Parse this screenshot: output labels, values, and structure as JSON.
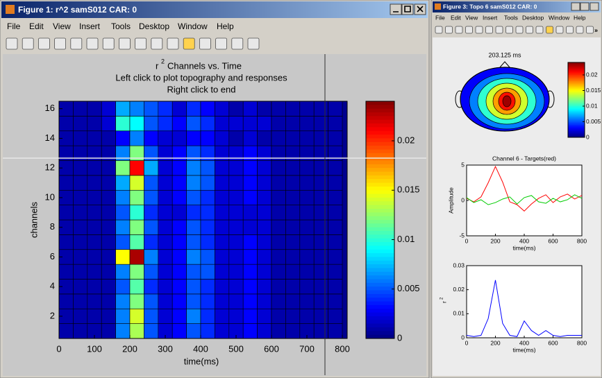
{
  "windows": [
    {
      "title": "Figure 1: r^2 samS012 CAR: 0",
      "menu": [
        "File",
        "Edit",
        "View",
        "Insert",
        "Tools",
        "Desktop",
        "Window",
        "Help"
      ],
      "heatmap": {
        "title_base": "r",
        "title_sup": "2",
        "title_rest": "Channels vs. Time",
        "subtitle": [
          "Left click to plot topography and responses",
          "Right click to end"
        ],
        "xlabel": "time(ms)",
        "ylabel": "channels",
        "xlim": [
          0,
          800
        ],
        "xticks": [
          0,
          100,
          200,
          300,
          400,
          500,
          600,
          700,
          800
        ],
        "ylim": [
          0.5,
          16.5
        ],
        "yticks": [
          2,
          4,
          6,
          8,
          10,
          12,
          14,
          16
        ],
        "bins": [
          0,
          40,
          80,
          120,
          160,
          200,
          240,
          280,
          320,
          360,
          400,
          440,
          480,
          520,
          560,
          600,
          640,
          680,
          720,
          760,
          800
        ],
        "values": [
          [
            0.001,
            0.001,
            0.001,
            0.001,
            0.006,
            0.013,
            0.005,
            0.002,
            0.003,
            0.005,
            0.004,
            0.002,
            0.002,
            0.003,
            0.002,
            0.001,
            0.001,
            0.001,
            0.001,
            0.001
          ],
          [
            0.001,
            0.001,
            0.001,
            0.001,
            0.006,
            0.014,
            0.005,
            0.002,
            0.003,
            0.006,
            0.004,
            0.002,
            0.002,
            0.003,
            0.002,
            0.001,
            0.001,
            0.001,
            0.001,
            0.001
          ],
          [
            0.001,
            0.001,
            0.001,
            0.001,
            0.006,
            0.012,
            0.005,
            0.002,
            0.003,
            0.005,
            0.004,
            0.002,
            0.002,
            0.003,
            0.002,
            0.001,
            0.001,
            0.001,
            0.001,
            0.001
          ],
          [
            0.001,
            0.001,
            0.001,
            0.001,
            0.005,
            0.011,
            0.004,
            0.002,
            0.003,
            0.005,
            0.004,
            0.002,
            0.002,
            0.003,
            0.002,
            0.001,
            0.001,
            0.001,
            0.001,
            0.001
          ],
          [
            0.001,
            0.001,
            0.001,
            0.001,
            0.006,
            0.012,
            0.005,
            0.002,
            0.003,
            0.005,
            0.005,
            0.002,
            0.002,
            0.003,
            0.002,
            0.001,
            0.001,
            0.001,
            0.001,
            0.001
          ],
          [
            0.001,
            0.001,
            0.001,
            0.001,
            0.015,
            0.023,
            0.006,
            0.002,
            0.003,
            0.006,
            0.005,
            0.002,
            0.002,
            0.003,
            0.002,
            0.001,
            0.001,
            0.001,
            0.001,
            0.001
          ],
          [
            0.001,
            0.001,
            0.001,
            0.001,
            0.005,
            0.011,
            0.004,
            0.002,
            0.003,
            0.005,
            0.004,
            0.002,
            0.002,
            0.003,
            0.002,
            0.001,
            0.001,
            0.001,
            0.001,
            0.001
          ],
          [
            0.001,
            0.001,
            0.001,
            0.001,
            0.006,
            0.012,
            0.005,
            0.002,
            0.003,
            0.005,
            0.004,
            0.002,
            0.002,
            0.002,
            0.002,
            0.001,
            0.001,
            0.001,
            0.001,
            0.001
          ],
          [
            0.001,
            0.001,
            0.001,
            0.001,
            0.005,
            0.01,
            0.004,
            0.002,
            0.002,
            0.004,
            0.004,
            0.002,
            0.002,
            0.002,
            0.002,
            0.001,
            0.001,
            0.001,
            0.001,
            0.001
          ],
          [
            0.001,
            0.001,
            0.001,
            0.001,
            0.006,
            0.012,
            0.005,
            0.002,
            0.003,
            0.005,
            0.004,
            0.002,
            0.002,
            0.003,
            0.002,
            0.001,
            0.001,
            0.001,
            0.001,
            0.001
          ],
          [
            0.001,
            0.001,
            0.001,
            0.001,
            0.007,
            0.014,
            0.005,
            0.002,
            0.003,
            0.006,
            0.005,
            0.002,
            0.002,
            0.003,
            0.002,
            0.001,
            0.001,
            0.001,
            0.001,
            0.001
          ],
          [
            0.001,
            0.001,
            0.001,
            0.001,
            0.012,
            0.021,
            0.007,
            0.002,
            0.003,
            0.006,
            0.005,
            0.002,
            0.002,
            0.003,
            0.002,
            0.001,
            0.001,
            0.001,
            0.001,
            0.001
          ],
          [
            0.001,
            0.001,
            0.001,
            0.001,
            0.006,
            0.012,
            0.005,
            0.002,
            0.003,
            0.005,
            0.004,
            0.002,
            0.002,
            0.003,
            0.002,
            0.001,
            0.001,
            0.001,
            0.001,
            0.001
          ],
          [
            0.001,
            0.001,
            0.001,
            0.001,
            0.003,
            0.006,
            0.003,
            0.002,
            0.002,
            0.003,
            0.003,
            0.002,
            0.001,
            0.002,
            0.001,
            0.001,
            0.001,
            0.001,
            0.001,
            0.001
          ],
          [
            0.001,
            0.001,
            0.001,
            0.002,
            0.01,
            0.009,
            0.005,
            0.004,
            0.003,
            0.005,
            0.004,
            0.002,
            0.002,
            0.002,
            0.002,
            0.001,
            0.001,
            0.001,
            0.001,
            0.001
          ],
          [
            0.001,
            0.001,
            0.001,
            0.002,
            0.007,
            0.006,
            0.005,
            0.004,
            0.002,
            0.004,
            0.003,
            0.002,
            0.001,
            0.002,
            0.001,
            0.001,
            0.001,
            0.001,
            0.001,
            0.001
          ]
        ],
        "clim": [
          0,
          0.024
        ],
        "cticks": [
          0,
          0.005,
          0.01,
          0.015,
          0.02
        ]
      }
    },
    {
      "title": "Figure 3: Topo 6 samS012 CAR: 0",
      "menu": [
        "File",
        "Edit",
        "View",
        "Insert",
        "Tools",
        "Desktop",
        "Window",
        "Help"
      ],
      "topo": {
        "title": "203.125 ms",
        "clim": [
          0,
          0.024
        ],
        "cticks": [
          0,
          0.005,
          0.01,
          0.015,
          0.02
        ]
      },
      "erp": {
        "title": "Channel 6 - Targets(red)",
        "ylabel": "Amplitude",
        "xlabel": "time(ms)",
        "xlim": [
          0,
          800
        ],
        "ylim": [
          -5,
          5
        ],
        "xticks": [
          0,
          200,
          400,
          600,
          800
        ],
        "yticks": [
          -5,
          0,
          5
        ],
        "x": [
          0,
          50,
          100,
          150,
          200,
          250,
          300,
          350,
          400,
          450,
          500,
          550,
          600,
          650,
          700,
          750,
          800
        ],
        "series": [
          {
            "color": "#ff0000",
            "values": [
              0.3,
              -0.2,
              0.5,
              2.5,
              4.8,
              2.6,
              -0.2,
              -0.6,
              -1.5,
              -0.5,
              0.3,
              0.8,
              -0.3,
              0.5,
              0.9,
              0.2,
              0.7
            ]
          },
          {
            "color": "#00cc00",
            "values": [
              0.4,
              -0.3,
              0.1,
              -0.6,
              -0.3,
              0.2,
              0.5,
              -0.5,
              0.4,
              0.7,
              -0.2,
              -0.4,
              0.3,
              -0.2,
              0.1,
              0.8,
              0.3
            ]
          }
        ]
      },
      "r2": {
        "ylabel_base": "r",
        "ylabel_sup": "2",
        "xlabel": "time(ms)",
        "xlim": [
          0,
          800
        ],
        "ylim": [
          0,
          0.03
        ],
        "xticks": [
          0,
          200,
          400,
          600,
          800
        ],
        "yticks": [
          0,
          0.01,
          0.02,
          0.03
        ],
        "x": [
          0,
          50,
          100,
          150,
          200,
          250,
          300,
          350,
          400,
          450,
          500,
          550,
          600,
          650,
          700,
          750,
          800
        ],
        "series": [
          {
            "color": "#0000ff",
            "values": [
              0.001,
              0.0005,
              0.001,
              0.008,
              0.024,
              0.006,
              0.001,
              0.0005,
              0.007,
              0.003,
              0.001,
              0.003,
              0.001,
              0.0005,
              0.001,
              0.001,
              0.001
            ]
          }
        ]
      }
    }
  ]
}
